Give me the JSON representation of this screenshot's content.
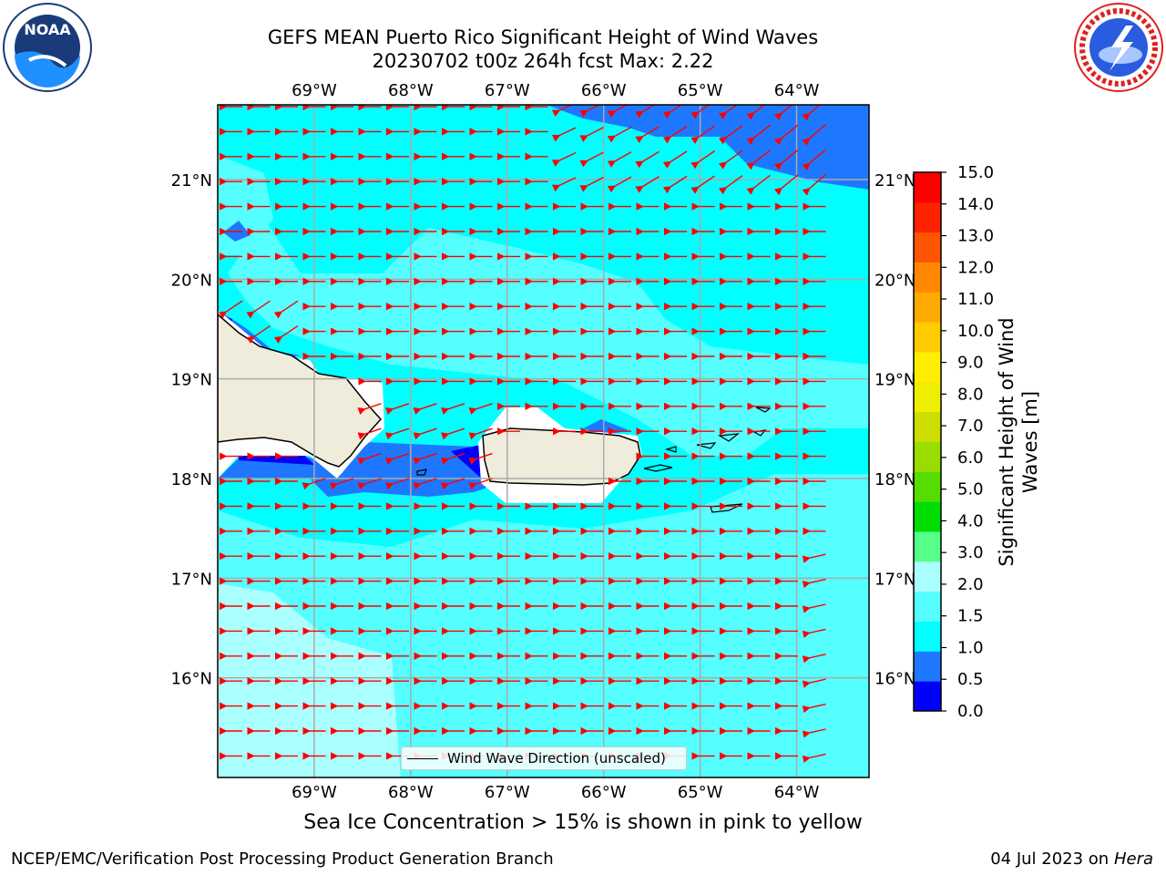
{
  "title": {
    "line1": "GEFS MEAN Puerto Rico Significant Height of Wind Waves",
    "line2": "20230702 t00z 264h fcst   Max: 2.22"
  },
  "axes": {
    "lon_labels": [
      "69°W",
      "68°W",
      "67°W",
      "66°W",
      "65°W",
      "64°W"
    ],
    "lat_labels": [
      "21°N",
      "20°N",
      "19°N",
      "18°N",
      "17°N",
      "16°N"
    ],
    "lon_values": [
      -69,
      -68,
      -67,
      -66,
      -65,
      -64
    ],
    "lat_values": [
      21,
      20,
      19,
      18,
      17,
      16
    ],
    "lon_range": [
      -70,
      -63.25
    ],
    "lat_range": [
      15,
      21.75
    ]
  },
  "colorbar": {
    "title_line1": "Significant Height of Wind",
    "title_line2": "Waves [m]",
    "ticks": [
      "0.0",
      "0.5",
      "1.0",
      "1.5",
      "2.0",
      "3.0",
      "4.0",
      "5.0",
      "6.0",
      "7.0",
      "8.0",
      "9.0",
      "10.0",
      "11.0",
      "12.0",
      "13.0",
      "14.0",
      "15.0"
    ],
    "colors": [
      "#0000ff",
      "#1e78ff",
      "#00ffff",
      "#55ffff",
      "#aaffff",
      "#55ff88",
      "#00dd00",
      "#55dd00",
      "#99dd00",
      "#ccdd00",
      "#eeee00",
      "#ffee00",
      "#ffcc00",
      "#ffaa00",
      "#ff8800",
      "#ff5500",
      "#ff2200",
      "#ff0000"
    ]
  },
  "legend": {
    "label": "Wind Wave Direction (unscaled)"
  },
  "footer": {
    "sea_ice_note": "Sea Ice Concentration > 15% is shown in pink to yellow",
    "branch": "NCEP/EMC/Verification Post Processing Product Generation Branch",
    "date": "04 Jul 2023 on ",
    "host": "Hera"
  },
  "logos": {
    "left": "noaa-logo",
    "right": "nws-logo"
  },
  "field_colors": {
    "cyan": "#00ffff",
    "light_cyan": "#55ffff",
    "pale_cyan": "#aaffff",
    "blue": "#1e78ff",
    "dark_blue": "#0000ff",
    "land": "#efecdc",
    "arrows": "#ff0000"
  }
}
